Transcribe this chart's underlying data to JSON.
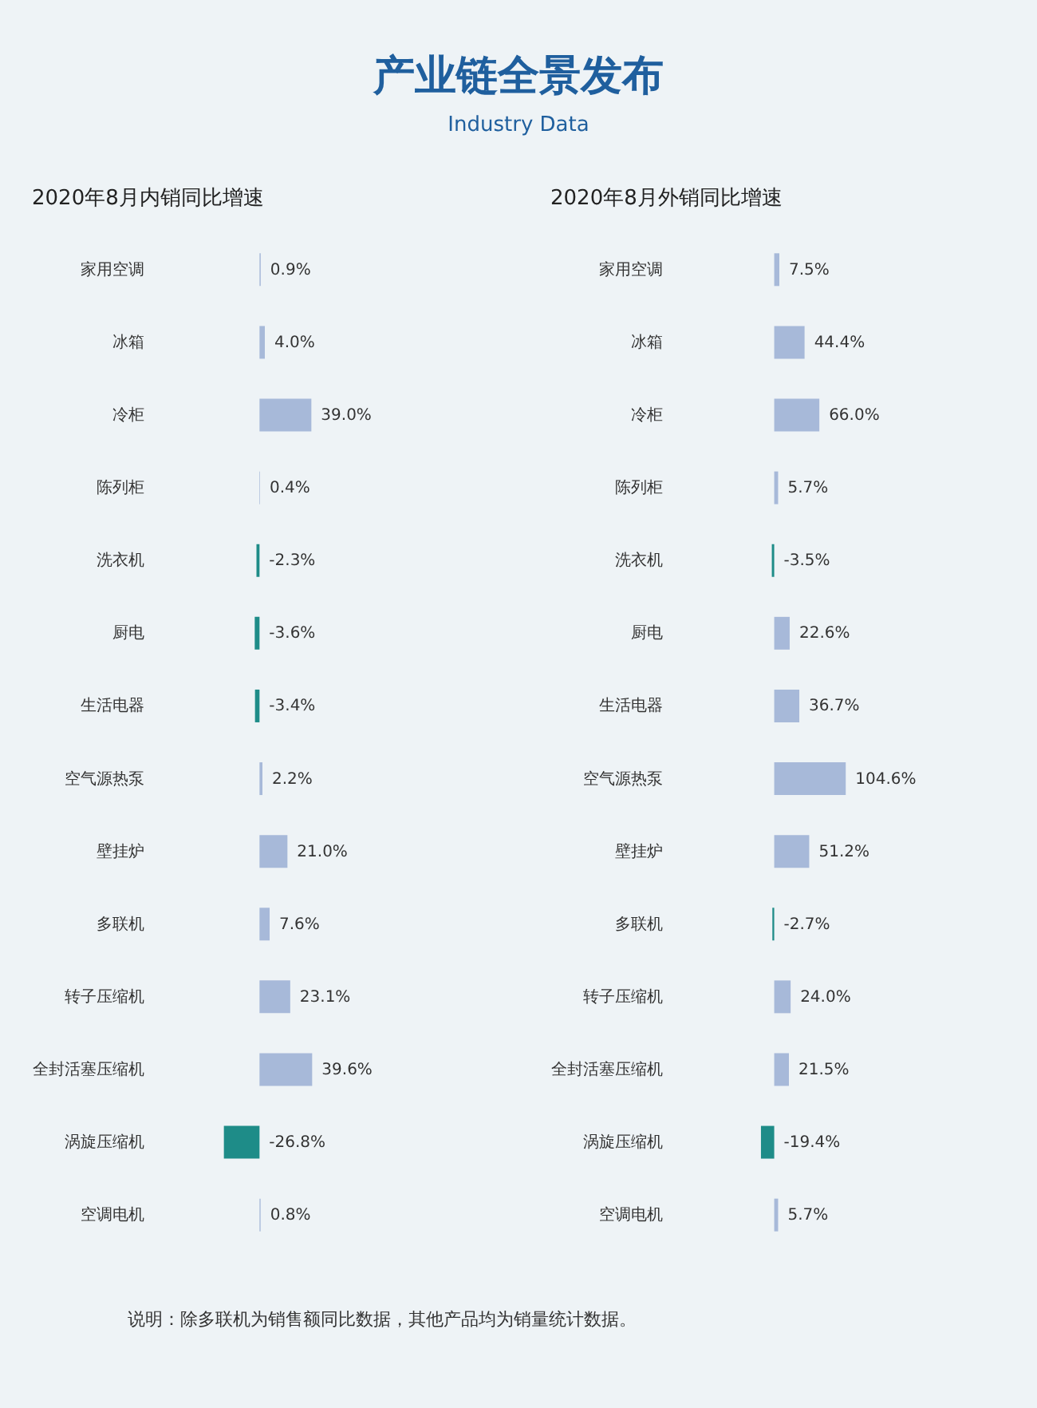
{
  "chart_data": [
    {
      "type": "other",
      "title": "产业链全景发布",
      "subtitle": "Industry Data"
    },
    {
      "type": "bar",
      "orientation": "horizontal",
      "title": "2020年8月内销同比增速",
      "categories": [
        "家用空调",
        "冰箱",
        "冷柜",
        "陈列柜",
        "洗衣机",
        "厨电",
        "生活电器",
        "空气源热泵",
        "壁挂炉",
        "多联机",
        "转子压缩机",
        "全封活塞压缩机",
        "涡旋压缩机",
        "空调电机"
      ],
      "values": [
        0.9,
        4.0,
        39.0,
        0.4,
        -2.3,
        -3.6,
        -3.4,
        2.2,
        21.0,
        7.6,
        23.1,
        39.6,
        -26.8,
        0.8
      ],
      "value_labels": [
        "0.9%",
        "4.0%",
        "39.0%",
        "0.4%",
        "-2.3%",
        "-3.6%",
        "-3.4%",
        "2.2%",
        "21.0%",
        "7.6%",
        "23.1%",
        "39.6%",
        "-26.8%",
        "0.8%"
      ],
      "colors": [
        "#a7b9d9",
        "#a7b9d9",
        "#a7b9d9",
        "#a7b9d9",
        "#1e8c88",
        "#1e8c88",
        "#1e8c88",
        "#a7b9d9",
        "#a7b9d9",
        "#a7b9d9",
        "#a7b9d9",
        "#a7b9d9",
        "#1e8c88",
        "#a7b9d9"
      ]
    },
    {
      "type": "bar",
      "orientation": "horizontal",
      "title": "2020年8月外销同比增速",
      "categories": [
        "家用空调",
        "冰箱",
        "冷柜",
        "陈列柜",
        "洗衣机",
        "厨电",
        "生活电器",
        "空气源热泵",
        "壁挂炉",
        "多联机",
        "转子压缩机",
        "全封活塞压缩机",
        "涡旋压缩机",
        "空调电机"
      ],
      "values": [
        7.5,
        44.4,
        66.0,
        5.7,
        -3.5,
        22.6,
        36.7,
        104.6,
        51.2,
        -2.7,
        24.0,
        21.5,
        -19.4,
        5.7
      ],
      "value_labels": [
        "7.5%",
        "44.4%",
        "66.0%",
        "5.7%",
        "-3.5%",
        "22.6%",
        "36.7%",
        "104.6%",
        "51.2%",
        "-2.7%",
        "24.0%",
        "21.5%",
        "-19.4%",
        "5.7%"
      ],
      "colors": [
        "#a7b9d9",
        "#a7b9d9",
        "#a7b9d9",
        "#a7b9d9",
        "#1e8c88",
        "#a7b9d9",
        "#a7b9d9",
        "#a7b9d9",
        "#a7b9d9",
        "#1e8c88",
        "#a7b9d9",
        "#a7b9d9",
        "#1e8c88",
        "#a7b9d9"
      ]
    },
    {
      "type": "other",
      "annotations": [
        "说明：除多联机为销售额同比数据，其他产品均为销量统计数据。"
      ]
    }
  ]
}
